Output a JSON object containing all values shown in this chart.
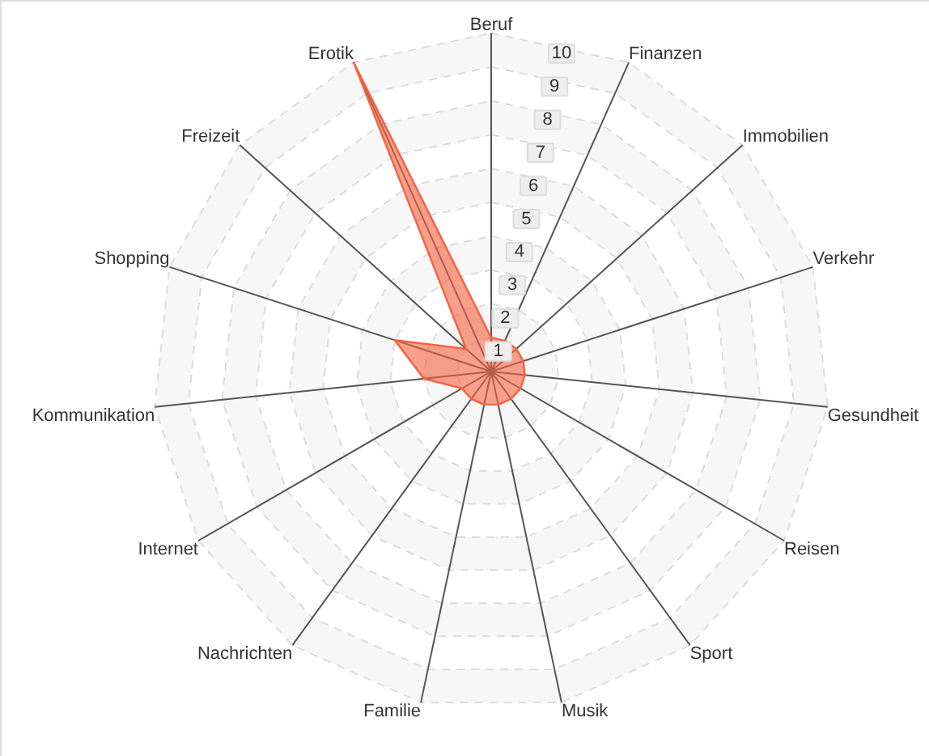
{
  "chart_data": {
    "type": "radar",
    "categories": [
      "Beruf",
      "Finanzen",
      "Immobilien",
      "Verkehr",
      "Gesundheit",
      "Reisen",
      "Sport",
      "Musik",
      "Familie",
      "Nachrichten",
      "Internet",
      "Kommunikation",
      "Shopping",
      "Freizeit",
      "Erotik"
    ],
    "series": [
      {
        "color": "#f4613f",
        "values": [
          1,
          1,
          1,
          1,
          1,
          1,
          1,
          1,
          1,
          1,
          1,
          2,
          3,
          1,
          10
        ]
      }
    ],
    "ylim": [
      0,
      10
    ],
    "yticks": [
      1,
      2,
      3,
      4,
      5,
      6,
      7,
      8,
      9,
      10
    ],
    "grid": true
  }
}
